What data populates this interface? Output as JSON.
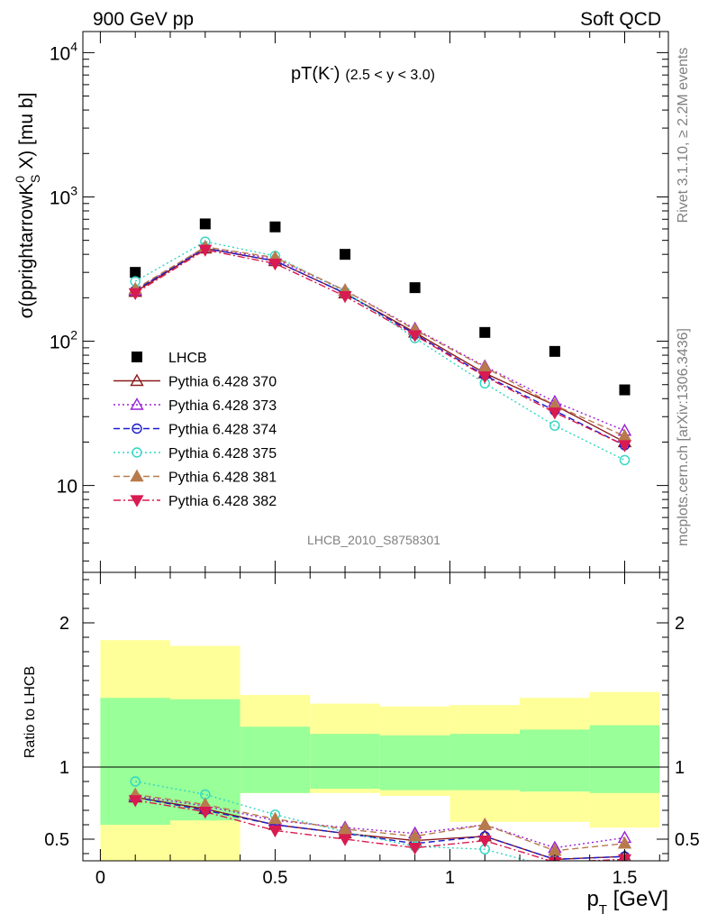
{
  "header": {
    "left": "900 GeV pp",
    "right": "Soft QCD"
  },
  "side_text": {
    "top": "Rivet 3.1.10, ≥ 2.2M events",
    "bottom": "mcplots.cern.ch [arXiv:1306.3436]"
  },
  "watermark": "LHCB_2010_S8758301",
  "plot_title": {
    "main": "pT(K",
    "sup": "-",
    "main_close": ")",
    "range": "(2.5 < y < 3.0)"
  },
  "chart_data": [
    {
      "type": "scatter",
      "panel": "main",
      "ylabel": "σ(pprightarrowK⁰s X) [mu b]",
      "ylabel_parts": {
        "a": "σ(pprightarrowK",
        "sup": "0",
        "sub": "S",
        "b": " X) [mu b]"
      },
      "yscale": "log",
      "ylim": [
        2.5,
        14000
      ],
      "xlim": [
        -0.05,
        1.625
      ],
      "ytick_labels": [
        {
          "value": 10,
          "base": "10",
          "exp": ""
        },
        {
          "value": 100,
          "base": "10",
          "exp": "2"
        },
        {
          "value": 1000,
          "base": "10",
          "exp": "3"
        },
        {
          "value": 10000,
          "base": "10",
          "exp": "4"
        }
      ],
      "x": [
        0.1,
        0.3,
        0.5,
        0.7,
        0.9,
        1.1,
        1.3,
        1.5
      ],
      "series": [
        {
          "name": "LHCB",
          "color": "#000000",
          "marker": "square",
          "line": "none",
          "values": [
            300,
            650,
            620,
            400,
            235,
            115,
            85,
            46
          ]
        },
        {
          "name": "Pythia 6.428 370",
          "color": "#8b1a1a",
          "marker": "triangle-open",
          "line": "solid",
          "values": [
            220,
            440,
            360,
            215,
            115,
            60,
            36,
            20
          ]
        },
        {
          "name": "Pythia 6.428 373",
          "color": "#9a1fd6",
          "marker": "triangle-open",
          "line": "dotted",
          "values": [
            225,
            450,
            370,
            225,
            122,
            67,
            38,
            24
          ]
        },
        {
          "name": "Pythia 6.428 374",
          "color": "#1a1acc",
          "marker": "circle-open",
          "line": "dashed",
          "values": [
            225,
            440,
            360,
            215,
            112,
            58,
            33,
            19
          ]
        },
        {
          "name": "Pythia 6.428 375",
          "color": "#2fd6c2",
          "marker": "circle-open",
          "line": "dotted",
          "values": [
            260,
            490,
            390,
            220,
            105,
            51,
            26,
            15
          ]
        },
        {
          "name": "Pythia 6.428 381",
          "color": "#b87a4b",
          "marker": "triangle-filled",
          "line": "dashed",
          "values": [
            230,
            450,
            380,
            225,
            120,
            66,
            36,
            22
          ]
        },
        {
          "name": "Pythia 6.428 382",
          "color": "#d81b50",
          "marker": "triangle-down-filled",
          "line": "dashdot",
          "values": [
            215,
            430,
            345,
            205,
            110,
            57,
            32,
            19
          ]
        }
      ]
    },
    {
      "type": "scatter",
      "panel": "ratio",
      "ylabel": "Ratio to LHCB",
      "xlabel_parts": {
        "a": "p",
        "sub": "T",
        "b": " [GeV]"
      },
      "xlim": [
        -0.05,
        1.625
      ],
      "ylim": [
        0.35,
        2.35
      ],
      "yticks": [
        0.5,
        1,
        2
      ],
      "ytick_labels": [
        "0.5",
        "1",
        "2"
      ],
      "xtick_labels": [
        {
          "value": 0,
          "label": "0"
        },
        {
          "value": 0.5,
          "label": "0.5"
        },
        {
          "value": 1,
          "label": "1"
        },
        {
          "value": 1.5,
          "label": "1.5"
        }
      ],
      "bands": {
        "bins": [
          0,
          0.2,
          0.4,
          0.6,
          0.8,
          1.0,
          1.2,
          1.4,
          1.6
        ],
        "outer": {
          "color": "#ffff99",
          "lo": [
            0.35,
            0.35,
            0.82,
            0.82,
            0.8,
            0.62,
            0.62,
            0.58
          ],
          "hi": [
            1.88,
            1.84,
            1.5,
            1.44,
            1.42,
            1.43,
            1.48,
            1.52
          ]
        },
        "inner": {
          "color": "#99ff99",
          "lo": [
            0.6,
            0.63,
            0.82,
            0.85,
            0.84,
            0.84,
            0.83,
            0.82
          ],
          "hi": [
            1.48,
            1.47,
            1.28,
            1.23,
            1.22,
            1.23,
            1.26,
            1.29
          ]
        }
      },
      "reference_line": 1,
      "x": [
        0.1,
        0.3,
        0.5,
        0.7,
        0.9,
        1.1,
        1.3,
        1.5
      ],
      "series": [
        {
          "name": "Pythia 6.428 370",
          "values": [
            0.79,
            0.71,
            0.6,
            0.54,
            0.49,
            0.52,
            0.36,
            0.38
          ]
        },
        {
          "name": "Pythia 6.428 373",
          "values": [
            0.8,
            0.73,
            0.63,
            0.58,
            0.54,
            0.6,
            0.44,
            0.51
          ]
        },
        {
          "name": "Pythia 6.428 374",
          "values": [
            0.79,
            0.7,
            0.6,
            0.54,
            0.47,
            0.52,
            0.36,
            0.38
          ]
        },
        {
          "name": "Pythia 6.428 375",
          "values": [
            0.9,
            0.81,
            0.67,
            0.55,
            0.45,
            0.43,
            0.3,
            0.32
          ]
        },
        {
          "name": "Pythia 6.428 381",
          "values": [
            0.81,
            0.74,
            0.64,
            0.57,
            0.52,
            0.6,
            0.42,
            0.47
          ]
        },
        {
          "name": "Pythia 6.428 382",
          "values": [
            0.77,
            0.69,
            0.56,
            0.5,
            0.44,
            0.49,
            0.34,
            0.36
          ]
        }
      ]
    }
  ]
}
